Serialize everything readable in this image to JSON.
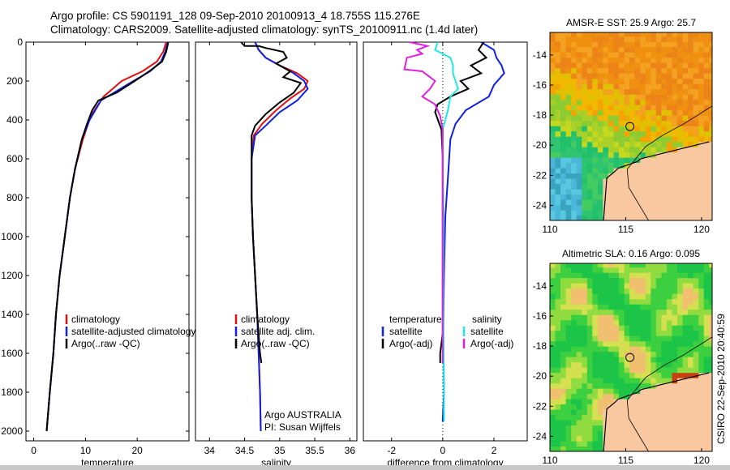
{
  "header": {
    "line1": "Argo profile: CS 5901191_128 09-Sep-2010 20100913_4 18.755S 115.276E",
    "line2": "Climatology: CARS2009. Satellite-adjusted climatology: synTS_20100911.nc (1.4d later)"
  },
  "side_label": "CSIRO 22-Sep-2010 20:40:59",
  "colors": {
    "climatology": "#e01010",
    "satellite": "#1020e0",
    "argo": "#000000",
    "cyan": "#20e8e8",
    "magenta": "#e020e0"
  },
  "chart_data": [
    {
      "type": "line",
      "id": "temperature",
      "xlabel": "temperature",
      "ylabel": "",
      "xlim": [
        -1.5,
        30
      ],
      "ylim": [
        2050,
        0
      ],
      "xticks": [
        0,
        10,
        20
      ],
      "yticks": [
        0,
        200,
        400,
        600,
        800,
        1000,
        1200,
        1400,
        1600,
        1800,
        2000
      ],
      "legend": {
        "placement": "lower-right",
        "entries": [
          "climatology",
          "satellite-adjusted climatology",
          "Argo(..raw -QC)"
        ]
      },
      "series": [
        {
          "name": "climatology",
          "color": "climatology",
          "points": [
            [
              25.6,
              0
            ],
            [
              25.0,
              50
            ],
            [
              23.8,
              100
            ],
            [
              21,
              150
            ],
            [
              17,
              200
            ],
            [
              13.5,
              280
            ],
            [
              11,
              380
            ],
            [
              9.5,
              500
            ],
            [
              8,
              650
            ],
            [
              7,
              800
            ],
            [
              6,
              1000
            ],
            [
              5,
              1200
            ],
            [
              4.3,
              1400
            ],
            [
              3.8,
              1600
            ],
            [
              3.1,
              1800
            ],
            [
              2.5,
              2000
            ]
          ]
        },
        {
          "name": "satellite-adjusted climatology",
          "color": "satellite",
          "points": [
            [
              25.9,
              0
            ],
            [
              25.4,
              50
            ],
            [
              24.6,
              100
            ],
            [
              22.5,
              150
            ],
            [
              18,
              220
            ],
            [
              13,
              300
            ],
            [
              10.8,
              400
            ],
            [
              9.3,
              500
            ],
            [
              8,
              650
            ],
            [
              7,
              800
            ],
            [
              6,
              1000
            ],
            [
              5,
              1200
            ],
            [
              4.3,
              1400
            ],
            [
              3.8,
              1600
            ],
            [
              3.1,
              1800
            ],
            [
              2.5,
              2000
            ]
          ]
        },
        {
          "name": "Argo(..raw -QC)",
          "color": "argo",
          "points": [
            [
              26,
              0
            ],
            [
              25.6,
              50
            ],
            [
              24.8,
              100
            ],
            [
              22.3,
              150
            ],
            [
              19.5,
              200
            ],
            [
              16,
              260
            ],
            [
              12.5,
              300
            ],
            [
              11.3,
              350
            ],
            [
              10.3,
              420
            ],
            [
              9.3,
              500
            ],
            [
              8,
              650
            ],
            [
              7,
              800
            ],
            [
              6,
              1000
            ],
            [
              5,
              1200
            ],
            [
              4.3,
              1400
            ],
            [
              3.8,
              1600
            ],
            [
              3.1,
              1800
            ],
            [
              2.5,
              2000
            ]
          ]
        }
      ]
    },
    {
      "type": "line",
      "id": "salinity",
      "xlabel": "salinity",
      "ylabel": "",
      "xlim": [
        33.8,
        36.1
      ],
      "ylim": [
        2050,
        0
      ],
      "xticks": [
        34,
        34.5,
        35,
        35.5,
        36
      ],
      "yticks": [],
      "annotations": [
        "Argo AUSTRALIA",
        "PI: Susan Wijffels"
      ],
      "legend": {
        "placement": "lower-right",
        "entries": [
          "climatology",
          "satellite adj. clim.",
          "Argo(..raw -QC)"
        ]
      },
      "series": [
        {
          "name": "climatology",
          "color": "climatology",
          "points": [
            [
              34.65,
              0
            ],
            [
              34.7,
              40
            ],
            [
              34.8,
              80
            ],
            [
              35.0,
              120
            ],
            [
              35.25,
              160
            ],
            [
              35.4,
              200
            ],
            [
              35.35,
              240
            ],
            [
              35.15,
              290
            ],
            [
              34.95,
              350
            ],
            [
              34.75,
              420
            ],
            [
              34.63,
              480
            ],
            [
              34.6,
              600
            ],
            [
              34.6,
              800
            ],
            [
              34.62,
              1000
            ],
            [
              34.65,
              1200
            ],
            [
              34.68,
              1400
            ],
            [
              34.7,
              1600
            ],
            [
              34.72,
              1800
            ],
            [
              34.73,
              2000
            ]
          ]
        },
        {
          "name": "satellite adj. clim.",
          "color": "satellite",
          "points": [
            [
              34.65,
              0
            ],
            [
              34.7,
              40
            ],
            [
              34.8,
              80
            ],
            [
              35.0,
              120
            ],
            [
              35.2,
              160
            ],
            [
              35.35,
              200
            ],
            [
              35.4,
              240
            ],
            [
              35.25,
              300
            ],
            [
              35.0,
              360
            ],
            [
              34.8,
              430
            ],
            [
              34.65,
              480
            ],
            [
              34.6,
              600
            ],
            [
              34.6,
              800
            ],
            [
              34.62,
              1000
            ],
            [
              34.65,
              1200
            ],
            [
              34.68,
              1400
            ],
            [
              34.7,
              1600
            ],
            [
              34.72,
              1800
            ],
            [
              34.73,
              2000
            ]
          ]
        },
        {
          "name": "Argo(..raw -QC)",
          "color": "argo",
          "points": [
            [
              34.45,
              0
            ],
            [
              34.5,
              20
            ],
            [
              34.7,
              20
            ],
            [
              34.8,
              30
            ],
            [
              35.05,
              50
            ],
            [
              35.1,
              80
            ],
            [
              34.95,
              110
            ],
            [
              35.15,
              150
            ],
            [
              35.05,
              180
            ],
            [
              35.3,
              210
            ],
            [
              35.2,
              260
            ],
            [
              35.0,
              310
            ],
            [
              34.8,
              370
            ],
            [
              34.65,
              430
            ],
            [
              34.6,
              480
            ],
            [
              34.6,
              600
            ],
            [
              34.6,
              800
            ],
            [
              34.62,
              1000
            ],
            [
              34.65,
              1200
            ],
            [
              34.68,
              1400
            ],
            [
              34.72,
              1600
            ],
            [
              34.74,
              1650
            ]
          ]
        }
      ]
    },
    {
      "type": "line",
      "id": "difference",
      "xlabel": "difference from climatology",
      "ylabel": "",
      "xlim": [
        -3.1,
        3.3
      ],
      "ylim": [
        2050,
        0
      ],
      "xticks": [
        -2,
        0,
        2
      ],
      "yticks": [],
      "legend": {
        "placement": "lower-right",
        "columns": [
          {
            "title": "temperature",
            "entries": [
              "satellite",
              "Argo(-adj)"
            ]
          },
          {
            "title": "salinity",
            "entries": [
              "satellite",
              "Argo(-adj)"
            ]
          }
        ]
      },
      "series": [
        {
          "name": "temperature satellite",
          "color": "satellite",
          "points": [
            [
              1.5,
              0
            ],
            [
              2.0,
              40
            ],
            [
              2.1,
              80
            ],
            [
              2.3,
              120
            ],
            [
              2.4,
              160
            ],
            [
              2.0,
              220
            ],
            [
              1.8,
              280
            ],
            [
              0.9,
              350
            ],
            [
              0.5,
              420
            ],
            [
              0.3,
              500
            ],
            [
              0.2,
              700
            ],
            [
              0.1,
              900
            ],
            [
              0.05,
              1200
            ],
            [
              0.02,
              1500
            ],
            [
              0.05,
              1800
            ],
            [
              0.0,
              1950
            ]
          ]
        },
        {
          "name": "temperature Argo(-adj)",
          "color": "argo",
          "points": [
            [
              1.6,
              0
            ],
            [
              1.4,
              40
            ],
            [
              1.7,
              80
            ],
            [
              1.1,
              120
            ],
            [
              1.5,
              160
            ],
            [
              0.7,
              200
            ],
            [
              1.0,
              240
            ],
            [
              0.3,
              280
            ],
            [
              -0.2,
              320
            ],
            [
              -0.3,
              360
            ],
            [
              -0.05,
              450
            ],
            [
              0.0,
              600
            ],
            [
              0.0,
              900
            ],
            [
              0.0,
              1200
            ],
            [
              0.0,
              1500
            ],
            [
              -0.1,
              1600
            ],
            [
              -0.1,
              1650
            ]
          ]
        },
        {
          "name": "salinity satellite",
          "color": "cyan",
          "points": [
            [
              -0.2,
              0
            ],
            [
              -0.3,
              40
            ],
            [
              0.3,
              80
            ],
            [
              0.4,
              120
            ],
            [
              0.4,
              160
            ],
            [
              0.5,
              200
            ],
            [
              0.6,
              240
            ],
            [
              0.3,
              280
            ],
            [
              0.2,
              350
            ],
            [
              0.0,
              450
            ],
            [
              0.0,
              600
            ],
            [
              0.02,
              800
            ],
            [
              0.03,
              1000
            ],
            [
              0.02,
              1200
            ],
            [
              0.03,
              1500
            ],
            [
              0.05,
              1800
            ],
            [
              0.05,
              1950
            ]
          ]
        },
        {
          "name": "salinity Argo(-adj)",
          "color": "magenta",
          "points": [
            [
              -1.3,
              0
            ],
            [
              -0.6,
              20
            ],
            [
              -1.0,
              40
            ],
            [
              -0.8,
              60
            ],
            [
              -1.4,
              80
            ],
            [
              -1.5,
              140
            ],
            [
              -0.8,
              150
            ],
            [
              -0.5,
              180
            ],
            [
              -0.3,
              200
            ],
            [
              -0.5,
              240
            ],
            [
              -0.8,
              280
            ],
            [
              -0.3,
              320
            ],
            [
              -0.1,
              380
            ],
            [
              0.0,
              450
            ],
            [
              0.0,
              600
            ],
            [
              0.0,
              900
            ],
            [
              0.0,
              1200
            ],
            [
              0.0,
              1500
            ],
            [
              0.0,
              1650
            ]
          ]
        }
      ]
    }
  ],
  "maps": [
    {
      "id": "sst",
      "title": "AMSR-E SST: 25.9 Argo: 25.7",
      "xlim": [
        110,
        120.7
      ],
      "ylim": [
        -25,
        -12.5
      ],
      "xticks": [
        110,
        115,
        120
      ],
      "yticks": [
        -14,
        -16,
        -18,
        -20,
        -22,
        -24
      ],
      "argo_position": {
        "lon": 115.276,
        "lat": -18.755
      },
      "field": "sst"
    },
    {
      "id": "sla",
      "title": "Altimetric SLA: 0.16 Argo: 0.095",
      "xlim": [
        110,
        120.7
      ],
      "ylim": [
        -25,
        -12.5
      ],
      "xticks": [
        110,
        115,
        120
      ],
      "yticks": [
        -14,
        -16,
        -18,
        -20,
        -22,
        -24
      ],
      "argo_position": {
        "lon": 115.276,
        "lat": -18.755
      },
      "field": "sla"
    }
  ]
}
